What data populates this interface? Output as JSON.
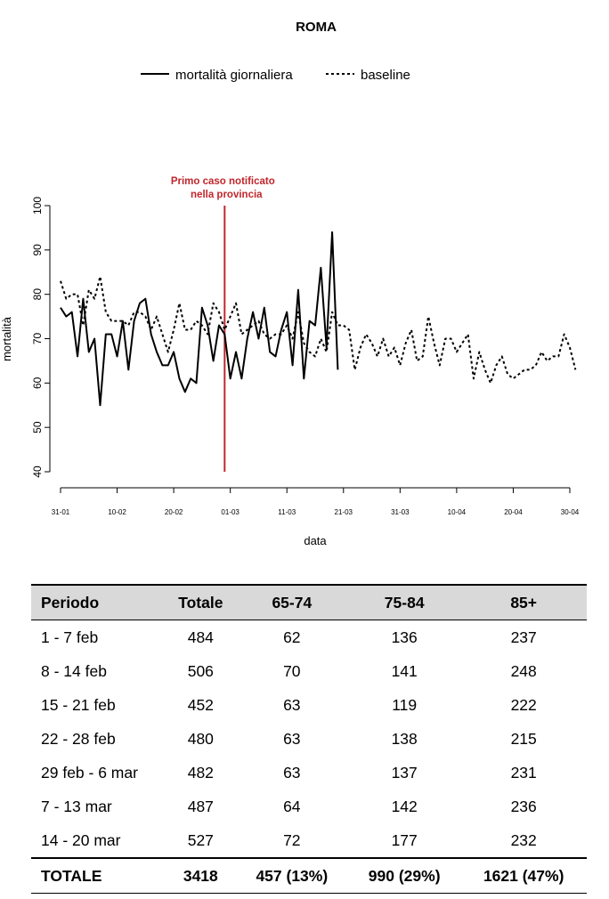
{
  "chart_data": {
    "type": "line",
    "title": "ROMA",
    "xlabel": "data",
    "ylabel": "mortalità",
    "ylim": [
      40,
      100
    ],
    "yticks": [
      40,
      50,
      60,
      70,
      80,
      90,
      100
    ],
    "xlim": [
      0,
      90
    ],
    "x_ticks": [
      {
        "pos": 0,
        "label": "31-01"
      },
      {
        "pos": 10,
        "label": "10-02"
      },
      {
        "pos": 20,
        "label": "20-02"
      },
      {
        "pos": 30,
        "label": "01-03"
      },
      {
        "pos": 40,
        "label": "11-03"
      },
      {
        "pos": 50,
        "label": "21-03"
      },
      {
        "pos": 60,
        "label": "31-03"
      },
      {
        "pos": 70,
        "label": "10-04"
      },
      {
        "pos": 80,
        "label": "20-04"
      },
      {
        "pos": 90,
        "label": "30-04"
      }
    ],
    "legend_position": "top-center",
    "annotation": {
      "x": 29,
      "lines": [
        "Primo caso notificato",
        "nella provincia"
      ],
      "color": "#c0262c"
    },
    "series": [
      {
        "name": "mortalità giornaliera",
        "style": "solid",
        "x_start": 0,
        "values": [
          77,
          75,
          76,
          66,
          79,
          67,
          70,
          55,
          71,
          71,
          66,
          74,
          63,
          74,
          78,
          79,
          71,
          67,
          64,
          64,
          67,
          61,
          58,
          61,
          60,
          77,
          73,
          65,
          73,
          71,
          61,
          67,
          61,
          70,
          76,
          70,
          77,
          67,
          66,
          72,
          76,
          64,
          81,
          61,
          74,
          73,
          86,
          68,
          94,
          63
        ]
      },
      {
        "name": "baseline",
        "style": "dashed",
        "x_start": 0,
        "values": [
          83,
          79,
          80,
          80,
          73,
          81,
          79,
          84,
          76,
          74,
          74,
          74,
          73,
          76,
          76,
          75,
          72,
          75,
          71,
          67,
          72,
          78,
          72,
          72,
          74,
          73,
          71,
          78,
          76,
          72,
          75,
          78,
          71,
          72,
          73,
          74,
          71,
          70,
          71,
          71,
          73,
          70,
          76,
          69,
          67,
          66,
          70,
          67,
          76,
          73,
          73,
          72,
          63,
          68,
          71,
          69,
          66,
          70,
          66,
          68,
          64,
          69,
          72,
          65,
          66,
          75,
          69,
          64,
          70,
          70,
          67,
          69,
          71,
          61,
          67,
          63,
          60,
          64,
          66,
          62,
          61,
          62,
          63,
          63,
          64,
          67,
          65,
          66,
          66,
          71,
          68,
          63
        ]
      }
    ]
  },
  "table": {
    "headers": [
      "Periodo",
      "Totale",
      "65-74",
      "75-84",
      "85+"
    ],
    "rows": [
      [
        "1 - 7 feb",
        "484",
        "62",
        "136",
        "237"
      ],
      [
        "8 - 14 feb",
        "506",
        "70",
        "141",
        "248"
      ],
      [
        "15 - 21 feb",
        "452",
        "63",
        "119",
        "222"
      ],
      [
        "22 - 28 feb",
        "480",
        "63",
        "138",
        "215"
      ],
      [
        "29 feb - 6 mar",
        "482",
        "63",
        "137",
        "231"
      ],
      [
        "7 - 13 mar",
        "487",
        "64",
        "142",
        "236"
      ],
      [
        "14 - 20 mar",
        "527",
        "72",
        "177",
        "232"
      ]
    ],
    "total": [
      "TOTALE",
      "3418",
      "457 (13%)",
      "990 (29%)",
      "1621 (47%)"
    ]
  }
}
